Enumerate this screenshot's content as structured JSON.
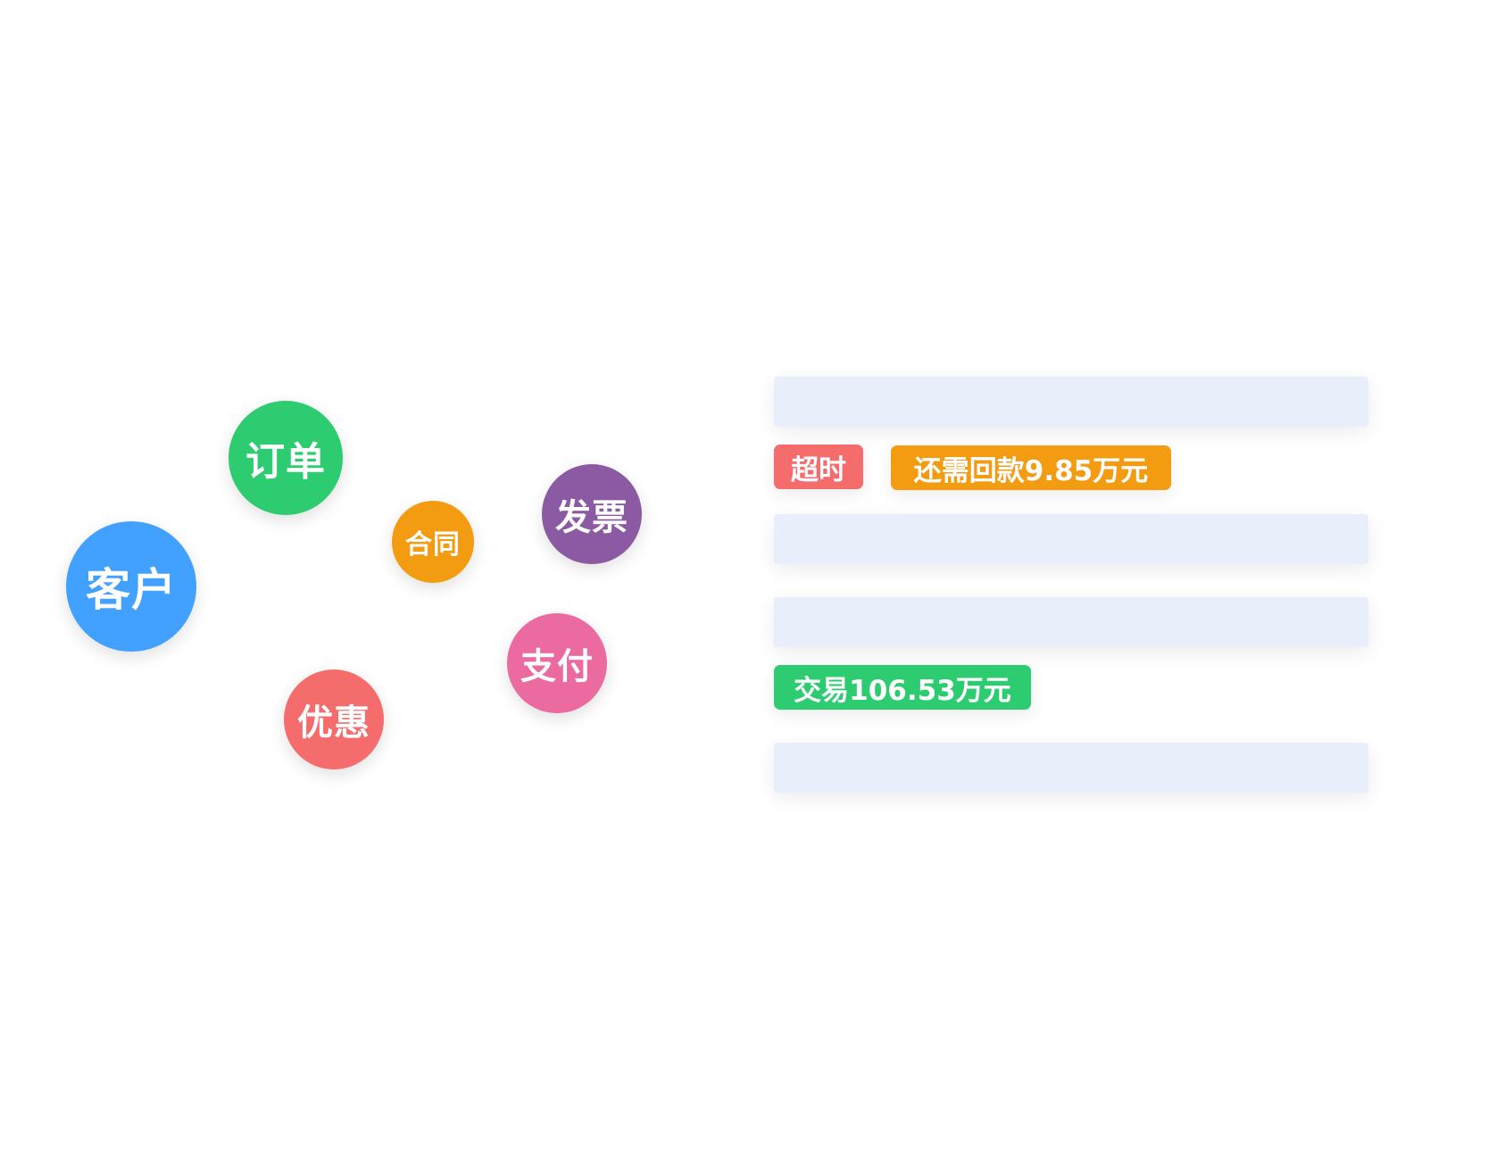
{
  "bubbles": [
    {
      "label": "客户",
      "color": "#42a0ff"
    },
    {
      "label": "订单",
      "color": "#2ecc71"
    },
    {
      "label": "合同",
      "color": "#f39c12"
    },
    {
      "label": "发票",
      "color": "#8c5aa2"
    },
    {
      "label": "支付",
      "color": "#eb6aa0"
    },
    {
      "label": "优惠",
      "color": "#f56c6c"
    }
  ],
  "tags": {
    "timeout": {
      "label": "超时",
      "color": "#f56c6c"
    },
    "remaining": {
      "label": "还需回款9.85万元",
      "color": "#f39c12"
    },
    "transaction": {
      "label": "交易106.53万元",
      "color": "#2ecc71"
    }
  },
  "placeholder_bar_color": "#e8eefa"
}
